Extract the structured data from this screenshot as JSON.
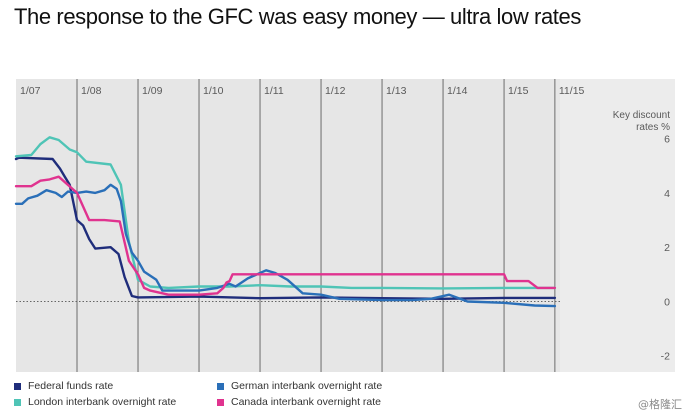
{
  "title": "The response to the GFC was easy money — ultra low rates",
  "watermark": "@格隆汇",
  "colors": {
    "plot_bg": "#e6e6e6",
    "gridline": "#6b6b6b",
    "zero_line": "#666666",
    "federal": "#1f2d7b",
    "london": "#4fc4b6",
    "german": "#2a6fb8",
    "canada": "#e0338f"
  },
  "chart_data": {
    "type": "line",
    "title": "The response to the GFC was easy money — ultra low rates",
    "ylabel": "Key discount rates %",
    "ylabel_lines": [
      "Key discount",
      "rates %"
    ],
    "xlim": [
      2007.0,
      2015.917
    ],
    "ylim": [
      -2.6,
      8.2
    ],
    "grid": "vertical",
    "legend_position": "bottom-left",
    "x_ticks": [
      {
        "label": "1/07",
        "x": 2007.0
      },
      {
        "label": "1/08",
        "x": 2008.0
      },
      {
        "label": "1/09",
        "x": 2009.0
      },
      {
        "label": "1/10",
        "x": 2010.0
      },
      {
        "label": "1/11",
        "x": 2011.0
      },
      {
        "label": "1/12",
        "x": 2012.0
      },
      {
        "label": "1/13",
        "x": 2013.0
      },
      {
        "label": "1/14",
        "x": 2014.0
      },
      {
        "label": "1/15",
        "x": 2015.0
      },
      {
        "label": "11/15",
        "x": 2015.833
      }
    ],
    "y_ticks": [
      {
        "label": "6",
        "y": 6
      },
      {
        "label": "4",
        "y": 4
      },
      {
        "label": "2",
        "y": 2
      },
      {
        "label": "0",
        "y": 0
      },
      {
        "label": "-2",
        "y": -2
      }
    ],
    "series": [
      {
        "name": "Federal funds rate",
        "color_key": "federal",
        "points": [
          [
            2007.0,
            5.25
          ],
          [
            2007.05,
            5.3
          ],
          [
            2007.6,
            5.25
          ],
          [
            2007.72,
            4.9
          ],
          [
            2007.8,
            4.6
          ],
          [
            2007.88,
            4.3
          ],
          [
            2008.0,
            3.0
          ],
          [
            2008.1,
            2.8
          ],
          [
            2008.2,
            2.3
          ],
          [
            2008.3,
            1.95
          ],
          [
            2008.55,
            2.0
          ],
          [
            2008.68,
            1.75
          ],
          [
            2008.78,
            0.9
          ],
          [
            2008.9,
            0.2
          ],
          [
            2009.0,
            0.15
          ],
          [
            2010.0,
            0.18
          ],
          [
            2011.0,
            0.12
          ],
          [
            2012.0,
            0.15
          ],
          [
            2013.0,
            0.12
          ],
          [
            2014.0,
            0.1
          ],
          [
            2015.0,
            0.13
          ],
          [
            2015.833,
            0.13
          ]
        ]
      },
      {
        "name": "London interbank overnight rate",
        "color_key": "london",
        "points": [
          [
            2007.0,
            5.35
          ],
          [
            2007.25,
            5.4
          ],
          [
            2007.4,
            5.8
          ],
          [
            2007.55,
            6.05
          ],
          [
            2007.7,
            5.95
          ],
          [
            2007.88,
            5.6
          ],
          [
            2008.0,
            5.5
          ],
          [
            2008.15,
            5.15
          ],
          [
            2008.55,
            5.05
          ],
          [
            2008.72,
            4.3
          ],
          [
            2008.85,
            2.2
          ],
          [
            2009.0,
            0.8
          ],
          [
            2009.2,
            0.55
          ],
          [
            2009.5,
            0.5
          ],
          [
            2010.0,
            0.55
          ],
          [
            2010.5,
            0.55
          ],
          [
            2011.0,
            0.6
          ],
          [
            2011.5,
            0.55
          ],
          [
            2012.0,
            0.55
          ],
          [
            2012.5,
            0.5
          ],
          [
            2013.0,
            0.5
          ],
          [
            2014.0,
            0.48
          ],
          [
            2015.0,
            0.5
          ],
          [
            2015.833,
            0.5
          ]
        ]
      },
      {
        "name": "German interbank overnight rate",
        "color_key": "german",
        "points": [
          [
            2007.0,
            3.6
          ],
          [
            2007.1,
            3.6
          ],
          [
            2007.2,
            3.8
          ],
          [
            2007.35,
            3.9
          ],
          [
            2007.5,
            4.1
          ],
          [
            2007.65,
            4.0
          ],
          [
            2007.75,
            3.85
          ],
          [
            2007.85,
            4.05
          ],
          [
            2008.0,
            4.0
          ],
          [
            2008.15,
            4.05
          ],
          [
            2008.3,
            4.0
          ],
          [
            2008.45,
            4.1
          ],
          [
            2008.55,
            4.3
          ],
          [
            2008.65,
            4.15
          ],
          [
            2008.72,
            3.7
          ],
          [
            2008.8,
            2.5
          ],
          [
            2008.9,
            1.8
          ],
          [
            2009.0,
            1.5
          ],
          [
            2009.1,
            1.1
          ],
          [
            2009.3,
            0.8
          ],
          [
            2009.4,
            0.4
          ],
          [
            2009.6,
            0.4
          ],
          [
            2010.0,
            0.4
          ],
          [
            2010.3,
            0.5
          ],
          [
            2010.5,
            0.65
          ],
          [
            2010.6,
            0.55
          ],
          [
            2010.8,
            0.85
          ],
          [
            2011.1,
            1.15
          ],
          [
            2011.25,
            1.05
          ],
          [
            2011.45,
            0.8
          ],
          [
            2011.7,
            0.3
          ],
          [
            2012.0,
            0.25
          ],
          [
            2012.3,
            0.1
          ],
          [
            2013.0,
            0.05
          ],
          [
            2013.5,
            0.05
          ],
          [
            2013.8,
            0.1
          ],
          [
            2014.1,
            0.25
          ],
          [
            2014.4,
            0.0
          ],
          [
            2015.0,
            -0.05
          ],
          [
            2015.5,
            -0.15
          ],
          [
            2015.833,
            -0.17
          ]
        ]
      },
      {
        "name": "Canada interbank overnight rate",
        "color_key": "canada",
        "points": [
          [
            2007.0,
            4.25
          ],
          [
            2007.25,
            4.25
          ],
          [
            2007.4,
            4.45
          ],
          [
            2007.55,
            4.5
          ],
          [
            2007.7,
            4.6
          ],
          [
            2007.85,
            4.3
          ],
          [
            2008.0,
            4.0
          ],
          [
            2008.1,
            3.5
          ],
          [
            2008.2,
            3.0
          ],
          [
            2008.45,
            3.0
          ],
          [
            2008.7,
            2.95
          ],
          [
            2008.85,
            1.5
          ],
          [
            2009.0,
            1.0
          ],
          [
            2009.1,
            0.5
          ],
          [
            2009.2,
            0.4
          ],
          [
            2009.5,
            0.25
          ],
          [
            2010.0,
            0.25
          ],
          [
            2010.3,
            0.3
          ],
          [
            2010.4,
            0.5
          ],
          [
            2010.45,
            0.7
          ],
          [
            2010.5,
            0.75
          ],
          [
            2010.55,
            1.0
          ],
          [
            2011.0,
            1.0
          ],
          [
            2012.0,
            1.0
          ],
          [
            2013.0,
            1.0
          ],
          [
            2014.0,
            1.0
          ],
          [
            2015.0,
            1.0
          ],
          [
            2015.05,
            0.75
          ],
          [
            2015.4,
            0.75
          ],
          [
            2015.55,
            0.5
          ],
          [
            2015.833,
            0.5
          ]
        ]
      }
    ]
  },
  "legend": [
    {
      "label": "Federal funds rate",
      "color_key": "federal"
    },
    {
      "label": "German interbank overnight rate",
      "color_key": "german"
    },
    {
      "label": "London interbank overnight rate",
      "color_key": "london"
    },
    {
      "label": "Canada interbank overnight rate",
      "color_key": "canada"
    }
  ]
}
